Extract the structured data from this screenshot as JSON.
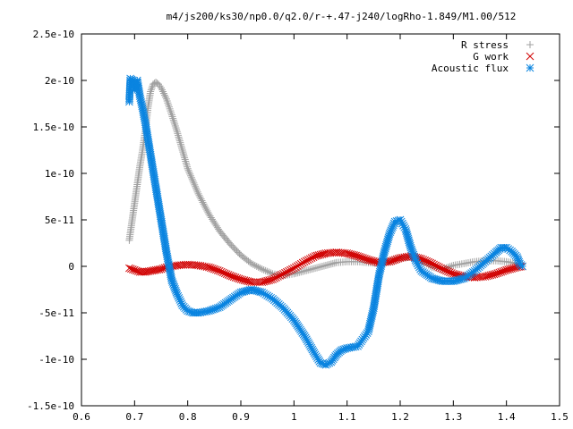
{
  "chart_data": {
    "type": "scatter",
    "title": "m4/js200/ks30/np0.0/q2.0/r-+.47-j240/logRho-1.849/M1.00/512",
    "xlabel": "",
    "ylabel": "",
    "xlim": [
      0.6,
      1.5
    ],
    "ylim": [
      -1.5e-10,
      2.5e-10
    ],
    "grid": false,
    "legend_position": "top-right",
    "x_ticks": [
      {
        "value": 0.6,
        "label": "0.6"
      },
      {
        "value": 0.7,
        "label": "0.7"
      },
      {
        "value": 0.8,
        "label": "0.8"
      },
      {
        "value": 0.9,
        "label": "0.9"
      },
      {
        "value": 1.0,
        "label": "1"
      },
      {
        "value": 1.1,
        "label": "1.1"
      },
      {
        "value": 1.2,
        "label": "1.2"
      },
      {
        "value": 1.3,
        "label": "1.3"
      },
      {
        "value": 1.4,
        "label": "1.4"
      },
      {
        "value": 1.5,
        "label": "1.5"
      }
    ],
    "y_ticks": [
      {
        "value": 2.5e-10,
        "label": "2.5e-10"
      },
      {
        "value": 2e-10,
        "label": "2e-10"
      },
      {
        "value": 1.5e-10,
        "label": "1.5e-10"
      },
      {
        "value": 1e-10,
        "label": "1e-10"
      },
      {
        "value": 5e-11,
        "label": "5e-11"
      },
      {
        "value": 0,
        "label": "0"
      },
      {
        "value": -5e-11,
        "label": "-5e-11"
      },
      {
        "value": -1e-10,
        "label": "-1e-10"
      },
      {
        "value": -1.5e-10,
        "label": "-1.5e-10"
      }
    ],
    "series": [
      {
        "name": "R stress",
        "marker": "plus",
        "color": "#a0a0a0",
        "points": [
          [
            0.69,
            2.8e-11
          ],
          [
            0.695,
            4.8e-11
          ],
          [
            0.7,
            6.8e-11
          ],
          [
            0.705,
            8.8e-11
          ],
          [
            0.71,
            1.08e-10
          ],
          [
            0.715,
            1.25e-10
          ],
          [
            0.72,
            1.45e-10
          ],
          [
            0.725,
            1.7e-10
          ],
          [
            0.73,
            1.88e-10
          ],
          [
            0.735,
            1.96e-10
          ],
          [
            0.74,
            1.98e-10
          ],
          [
            0.745,
            1.96e-10
          ],
          [
            0.75,
            1.92e-10
          ],
          [
            0.76,
            1.8e-10
          ],
          [
            0.77,
            1.63e-10
          ],
          [
            0.78,
            1.45e-10
          ],
          [
            0.79,
            1.25e-10
          ],
          [
            0.8,
            1.05e-10
          ],
          [
            0.82,
            7.8e-11
          ],
          [
            0.84,
            5.6e-11
          ],
          [
            0.86,
            3.8e-11
          ],
          [
            0.88,
            2.4e-11
          ],
          [
            0.9,
            1.2e-11
          ],
          [
            0.92,
            3e-12
          ],
          [
            0.94,
            -3e-12
          ],
          [
            0.96,
            -8e-12
          ],
          [
            0.98,
            -1e-11
          ],
          [
            1.0,
            -8e-12
          ],
          [
            1.02,
            -5e-12
          ],
          [
            1.04,
            -2e-12
          ],
          [
            1.06,
            1e-12
          ],
          [
            1.08,
            4e-12
          ],
          [
            1.1,
            5e-12
          ],
          [
            1.12,
            5e-12
          ],
          [
            1.14,
            4e-12
          ],
          [
            1.16,
            3e-12
          ],
          [
            1.18,
            5e-12
          ],
          [
            1.2,
            9e-12
          ],
          [
            1.22,
            1e-11
          ],
          [
            1.24,
            6e-12
          ],
          [
            1.26,
            -1e-12
          ],
          [
            1.28,
            -3e-12
          ],
          [
            1.3,
            1e-12
          ],
          [
            1.32,
            3e-12
          ],
          [
            1.34,
            5e-12
          ],
          [
            1.36,
            6e-12
          ],
          [
            1.38,
            6e-12
          ],
          [
            1.4,
            5e-12
          ],
          [
            1.42,
            3e-12
          ],
          [
            1.43,
            2e-12
          ]
        ]
      },
      {
        "name": "G work",
        "marker": "cross",
        "color": "#d00000",
        "points": [
          [
            0.69,
            -2e-12
          ],
          [
            0.7,
            -4e-12
          ],
          [
            0.71,
            -6e-12
          ],
          [
            0.72,
            -6e-12
          ],
          [
            0.73,
            -5e-12
          ],
          [
            0.74,
            -4e-12
          ],
          [
            0.75,
            -3e-12
          ],
          [
            0.76,
            -1e-12
          ],
          [
            0.78,
            1e-12
          ],
          [
            0.8,
            2e-12
          ],
          [
            0.82,
            1e-12
          ],
          [
            0.84,
            -1e-12
          ],
          [
            0.86,
            -5e-12
          ],
          [
            0.88,
            -1e-11
          ],
          [
            0.9,
            -1.4e-11
          ],
          [
            0.92,
            -1.7e-11
          ],
          [
            0.94,
            -1.7e-11
          ],
          [
            0.96,
            -1.4e-11
          ],
          [
            0.98,
            -8e-12
          ],
          [
            1.0,
            -2e-12
          ],
          [
            1.02,
            5e-12
          ],
          [
            1.04,
            1.1e-11
          ],
          [
            1.06,
            1.4e-11
          ],
          [
            1.08,
            1.5e-11
          ],
          [
            1.1,
            1.4e-11
          ],
          [
            1.12,
            1.1e-11
          ],
          [
            1.14,
            7e-12
          ],
          [
            1.16,
            4e-12
          ],
          [
            1.18,
            5e-12
          ],
          [
            1.2,
            9e-12
          ],
          [
            1.22,
            1.1e-11
          ],
          [
            1.24,
            8e-12
          ],
          [
            1.26,
            3e-12
          ],
          [
            1.28,
            -3e-12
          ],
          [
            1.3,
            -8e-12
          ],
          [
            1.32,
            -1.1e-11
          ],
          [
            1.34,
            -1.2e-11
          ],
          [
            1.36,
            -1.1e-11
          ],
          [
            1.38,
            -8e-12
          ],
          [
            1.4,
            -4e-12
          ],
          [
            1.42,
            -1e-12
          ],
          [
            1.43,
            0
          ]
        ]
      },
      {
        "name": "Acoustic flux",
        "marker": "star",
        "color": "#0a84e0",
        "points": [
          [
            0.69,
            1.77e-10
          ],
          [
            0.692,
            2.02e-10
          ],
          [
            0.697,
            2e-10
          ],
          [
            0.7,
            1.9e-10
          ],
          [
            0.705,
            2e-10
          ],
          [
            0.71,
            1.83e-10
          ],
          [
            0.715,
            1.7e-10
          ],
          [
            0.72,
            1.55e-10
          ],
          [
            0.73,
            1.2e-10
          ],
          [
            0.74,
            8.5e-11
          ],
          [
            0.75,
            5e-11
          ],
          [
            0.76,
            1.5e-11
          ],
          [
            0.77,
            -1.5e-11
          ],
          [
            0.78,
            -3e-11
          ],
          [
            0.79,
            -4.2e-11
          ],
          [
            0.8,
            -4.8e-11
          ],
          [
            0.81,
            -5e-11
          ],
          [
            0.82,
            -5e-11
          ],
          [
            0.84,
            -4.8e-11
          ],
          [
            0.86,
            -4.4e-11
          ],
          [
            0.88,
            -3.6e-11
          ],
          [
            0.9,
            -2.8e-11
          ],
          [
            0.92,
            -2.5e-11
          ],
          [
            0.94,
            -2.8e-11
          ],
          [
            0.96,
            -3.5e-11
          ],
          [
            0.98,
            -4.5e-11
          ],
          [
            1.0,
            -5.8e-11
          ],
          [
            1.02,
            -7.5e-11
          ],
          [
            1.04,
            -9.5e-11
          ],
          [
            1.05,
            -1.04e-10
          ],
          [
            1.06,
            -1.06e-10
          ],
          [
            1.07,
            -1.03e-10
          ],
          [
            1.08,
            -9.5e-11
          ],
          [
            1.09,
            -9e-11
          ],
          [
            1.1,
            -8.8e-11
          ],
          [
            1.12,
            -8.6e-11
          ],
          [
            1.14,
            -7e-11
          ],
          [
            1.15,
            -4.5e-11
          ],
          [
            1.16,
            -1e-11
          ],
          [
            1.17,
            1.5e-11
          ],
          [
            1.18,
            3.5e-11
          ],
          [
            1.19,
            4.8e-11
          ],
          [
            1.2,
            5e-11
          ],
          [
            1.21,
            4e-11
          ],
          [
            1.22,
            2e-11
          ],
          [
            1.23,
            5e-12
          ],
          [
            1.24,
            -5e-12
          ],
          [
            1.26,
            -1.3e-11
          ],
          [
            1.28,
            -1.6e-11
          ],
          [
            1.3,
            -1.6e-11
          ],
          [
            1.32,
            -1.3e-11
          ],
          [
            1.34,
            -5e-12
          ],
          [
            1.36,
            5e-12
          ],
          [
            1.38,
            1.5e-11
          ],
          [
            1.39,
            2e-11
          ],
          [
            1.4,
            2e-11
          ],
          [
            1.41,
            1.6e-11
          ],
          [
            1.42,
            1e-11
          ],
          [
            1.425,
            3e-12
          ],
          [
            1.43,
            0
          ]
        ]
      }
    ]
  }
}
